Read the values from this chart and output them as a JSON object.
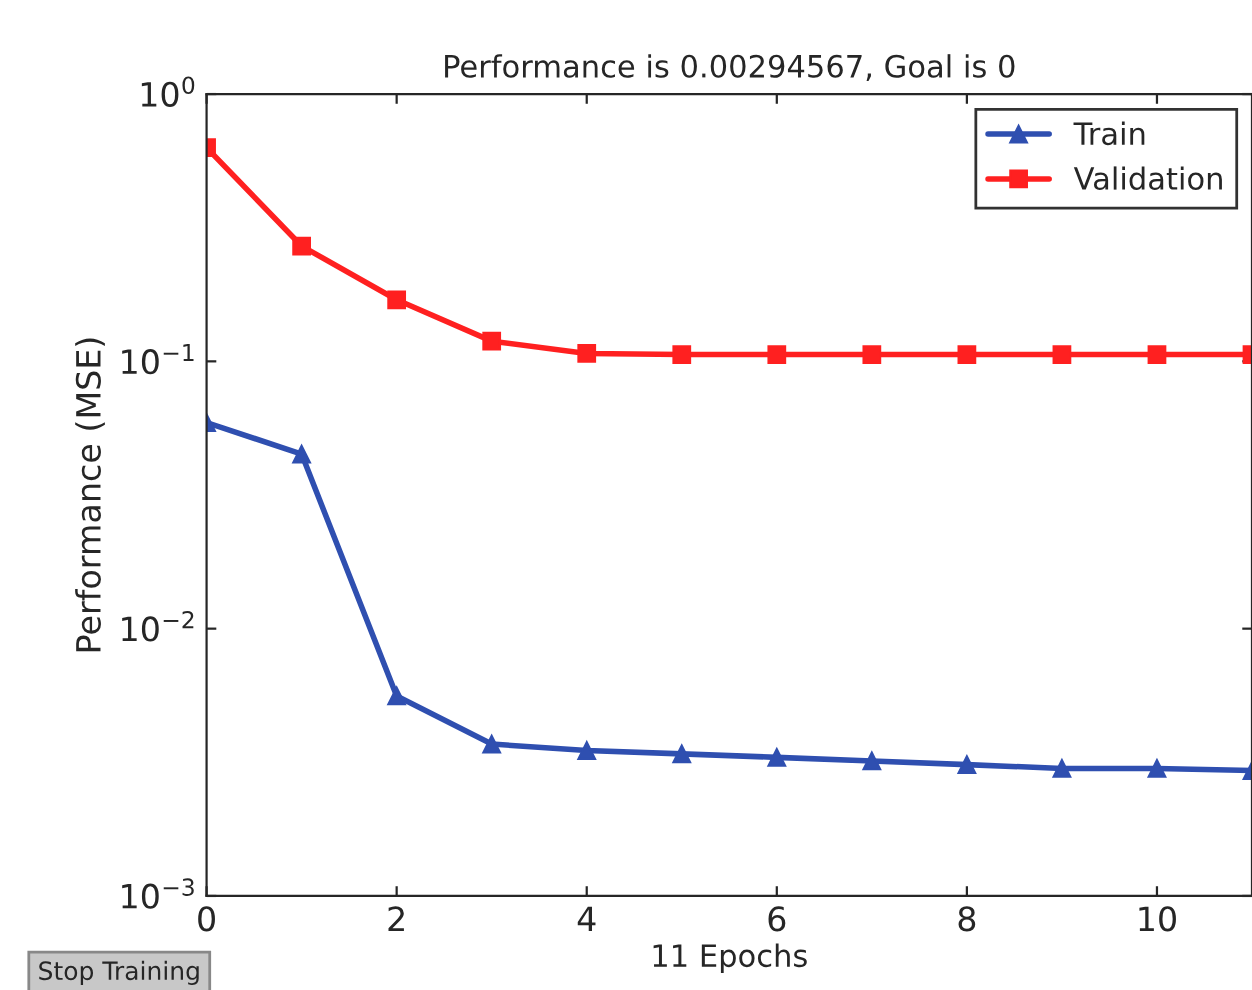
{
  "chart_data": {
    "type": "line",
    "title": "Performance is 0.00294567, Goal is 0",
    "xlabel": "11 Epochs",
    "ylabel": "Performance (MSE)",
    "x": [
      0,
      1,
      2,
      3,
      4,
      5,
      6,
      7,
      8,
      9,
      10,
      11
    ],
    "series": [
      {
        "name": "Train",
        "color": "#2f4fb0",
        "marker": "triangle",
        "values": [
          0.059,
          0.045,
          0.0056,
          0.0037,
          0.0035,
          0.0034,
          0.0033,
          0.0032,
          0.0031,
          0.003,
          0.003,
          0.00294567
        ]
      },
      {
        "name": "Validation",
        "color": "#ff2020",
        "marker": "square",
        "values": [
          0.63,
          0.27,
          0.17,
          0.119,
          0.107,
          0.106,
          0.106,
          0.106,
          0.106,
          0.106,
          0.106,
          0.106
        ]
      }
    ],
    "log": "y",
    "xlim": [
      0,
      11
    ],
    "xticks": [
      0,
      2,
      4,
      6,
      8,
      10
    ],
    "ylim": [
      0.001,
      1
    ],
    "yticks": [
      {
        "value": 0.001,
        "label": "10$^{−3}$"
      },
      {
        "value": 0.01,
        "label": "10$^{−2}$"
      },
      {
        "value": 0.1,
        "label": "10$^{−1}$"
      },
      {
        "value": 1,
        "label": "10$^{0}$"
      }
    ],
    "legend": "top right",
    "grid": false,
    "line_style": "solid",
    "annotations": [
      "Stop Training"
    ]
  }
}
